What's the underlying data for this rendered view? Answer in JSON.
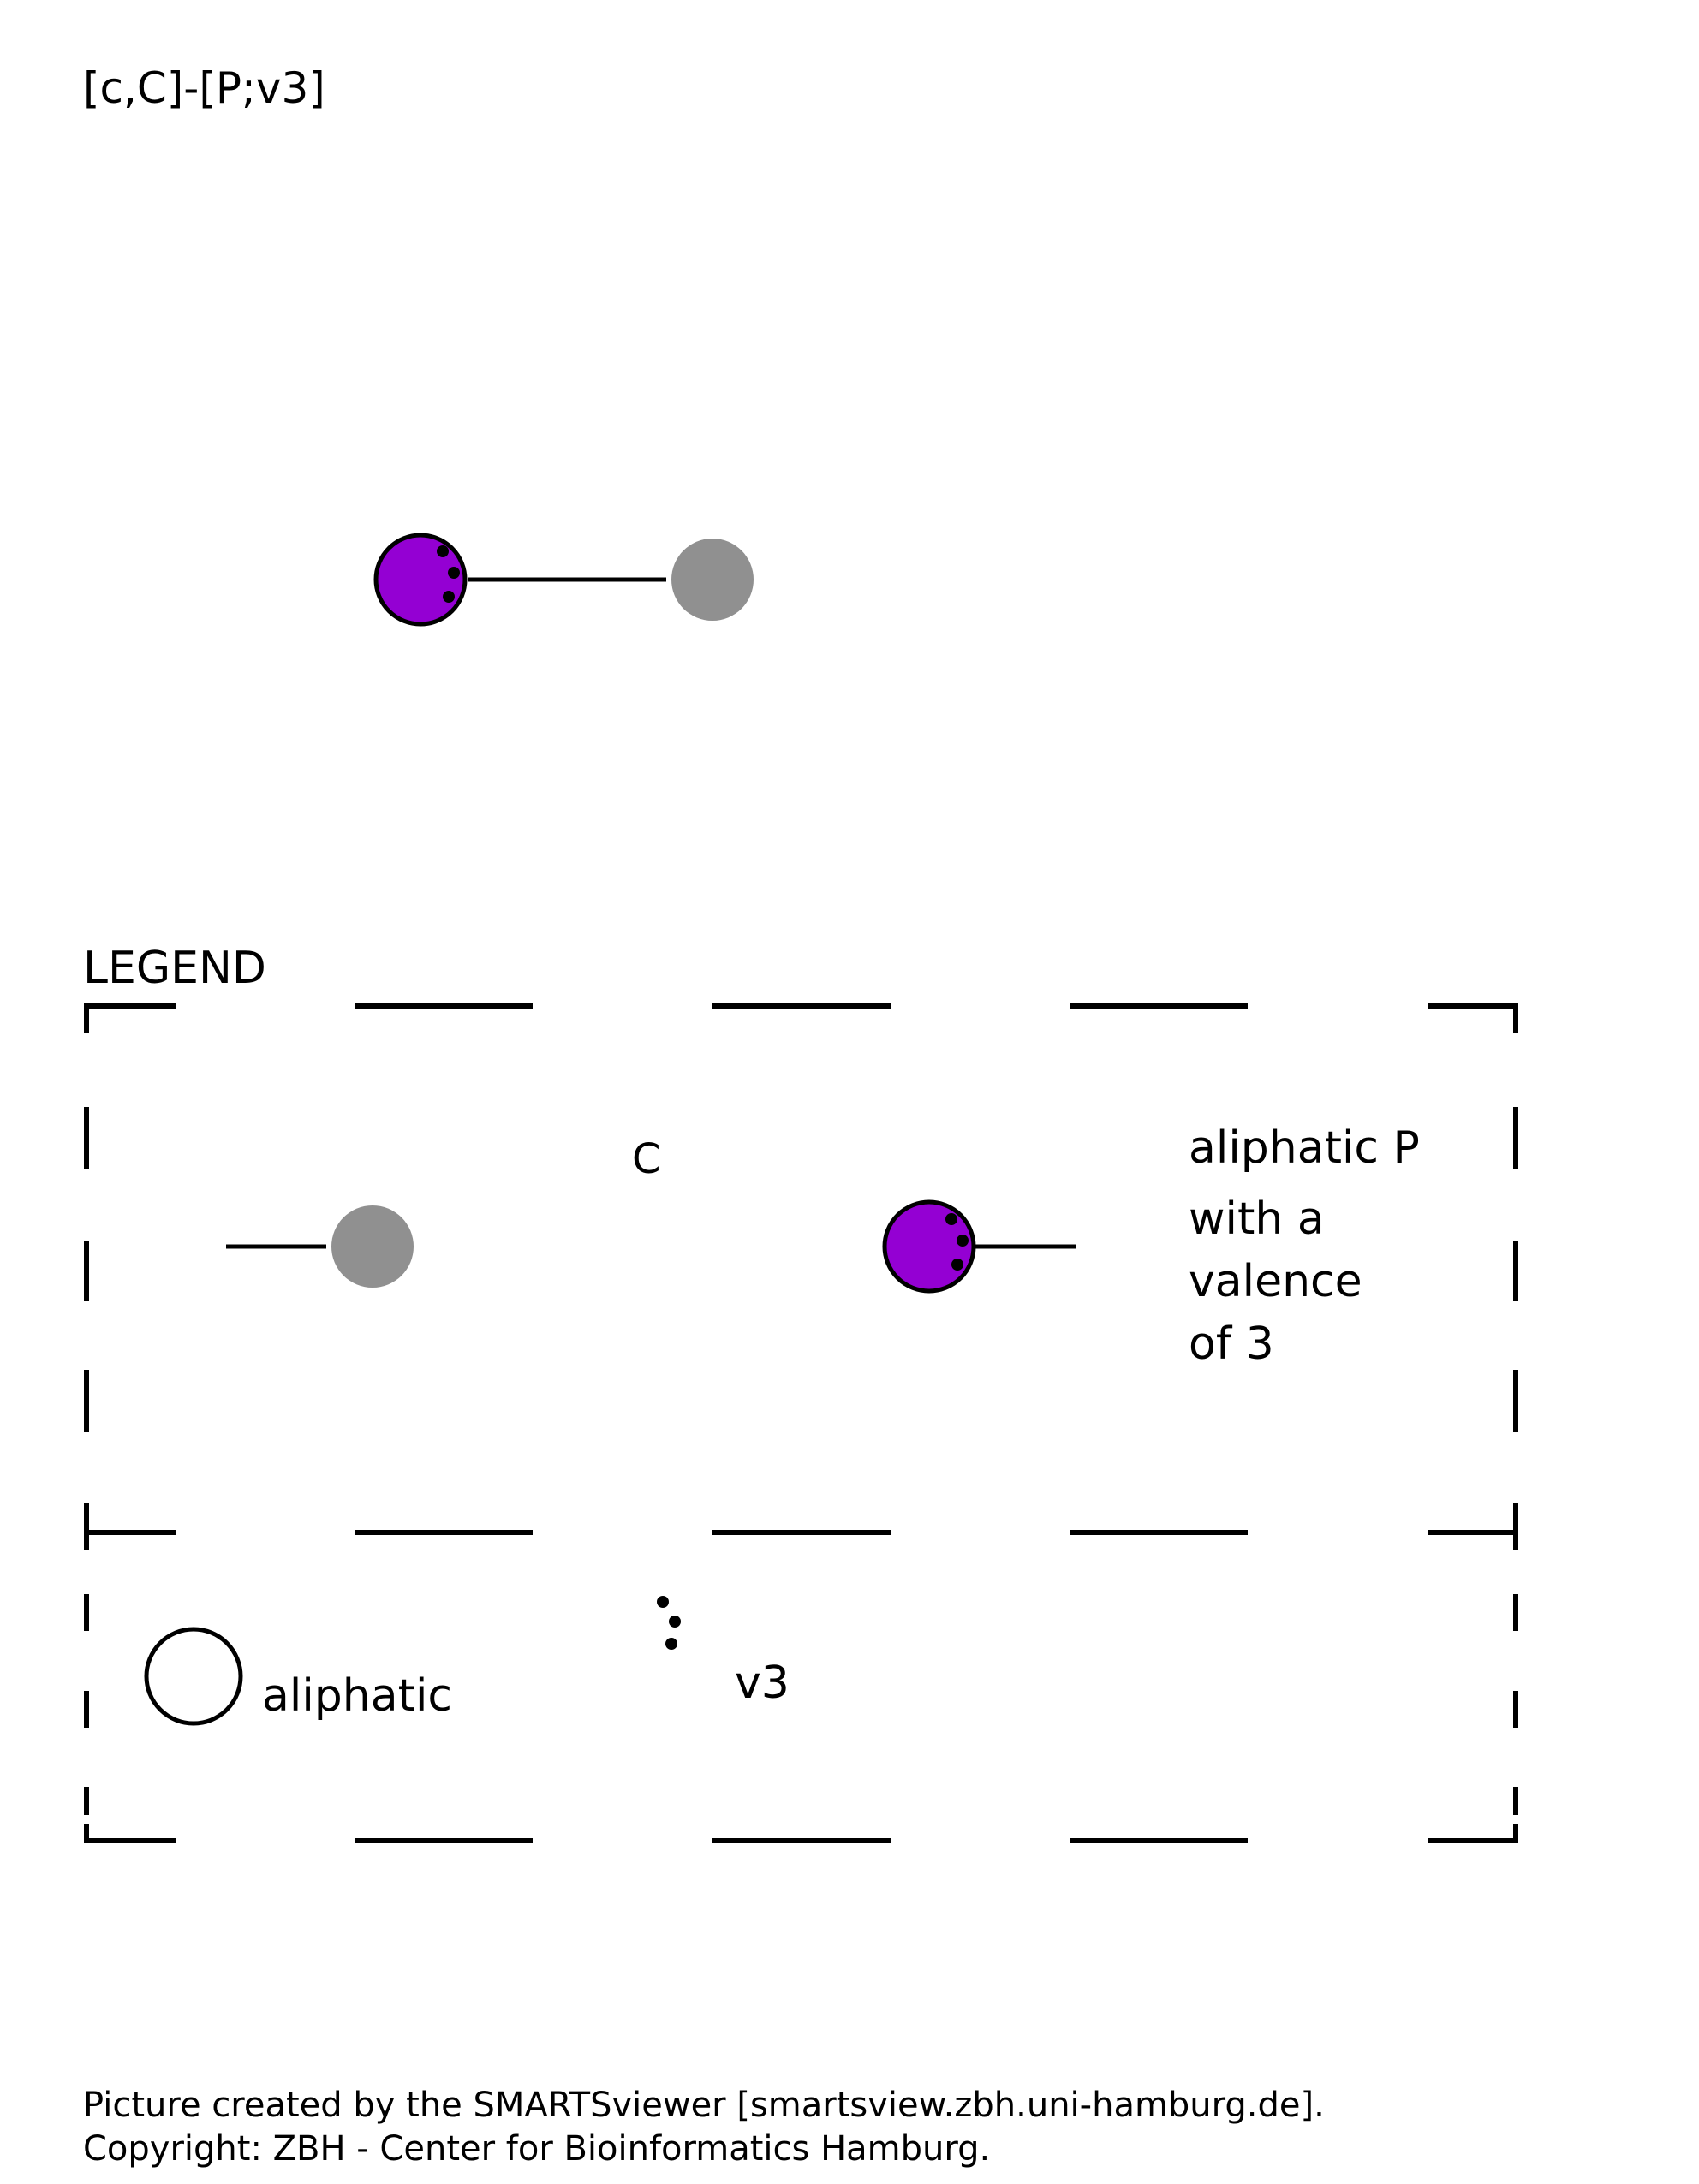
{
  "smarts_pattern": "[c,C]-[P;v3]",
  "colors": {
    "phosphorus": "#9400D3",
    "carbon": "#909090",
    "stroke": "#000000",
    "background": "#ffffff"
  },
  "molecule": {
    "atoms": [
      {
        "element": "P",
        "aromaticity": "aliphatic",
        "valence": 3
      },
      {
        "element": "C",
        "aromaticity": "aromatic or aliphatic"
      }
    ],
    "bonds": [
      {
        "from": 0,
        "to": 1,
        "type": "single"
      }
    ]
  },
  "legend": {
    "title": "LEGEND",
    "carbon_label": "C",
    "phosphorus_label_lines": [
      "aliphatic P",
      "with a",
      "valence",
      "of 3"
    ],
    "aliphatic_label": "aliphatic",
    "valence_label": "v3"
  },
  "footer": {
    "line1": "Picture created by the SMARTSviewer [smartsview.zbh.uni-hamburg.de].",
    "line2": "Copyright: ZBH - Center for Bioinformatics Hamburg."
  }
}
